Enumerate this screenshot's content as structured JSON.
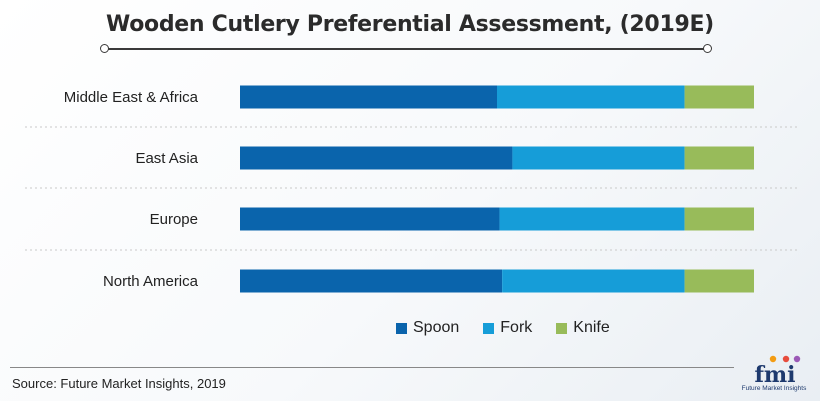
{
  "title": "Wooden Cutlery Preferential Assessment, (2019E)",
  "source": "Source: Future Market Insights, 2019",
  "logo": {
    "text": "fmi",
    "caption": "Future Market Insights"
  },
  "legend": [
    {
      "label": "Spoon",
      "color": "#0a64ac"
    },
    {
      "label": "Fork",
      "color": "#169dd8"
    },
    {
      "label": "Knife",
      "color": "#98bb5a"
    }
  ],
  "chart_data": {
    "type": "bar",
    "orientation": "horizontal",
    "stacked": true,
    "percent": true,
    "categories": [
      "Middle East & Africa",
      "East Asia",
      "Europe",
      "North America"
    ],
    "series": [
      {
        "name": "Spoon",
        "color": "#0a64ac",
        "values": [
          50,
          53,
          50.5,
          51
        ]
      },
      {
        "name": "Fork",
        "color": "#169dd8",
        "values": [
          36.5,
          33.5,
          36,
          35.5
        ]
      },
      {
        "name": "Knife",
        "color": "#98bb5a",
        "values": [
          13.5,
          13.5,
          13.5,
          13.5
        ]
      }
    ],
    "xlim": [
      0,
      100
    ],
    "grid": false,
    "legend_position": "bottom"
  }
}
